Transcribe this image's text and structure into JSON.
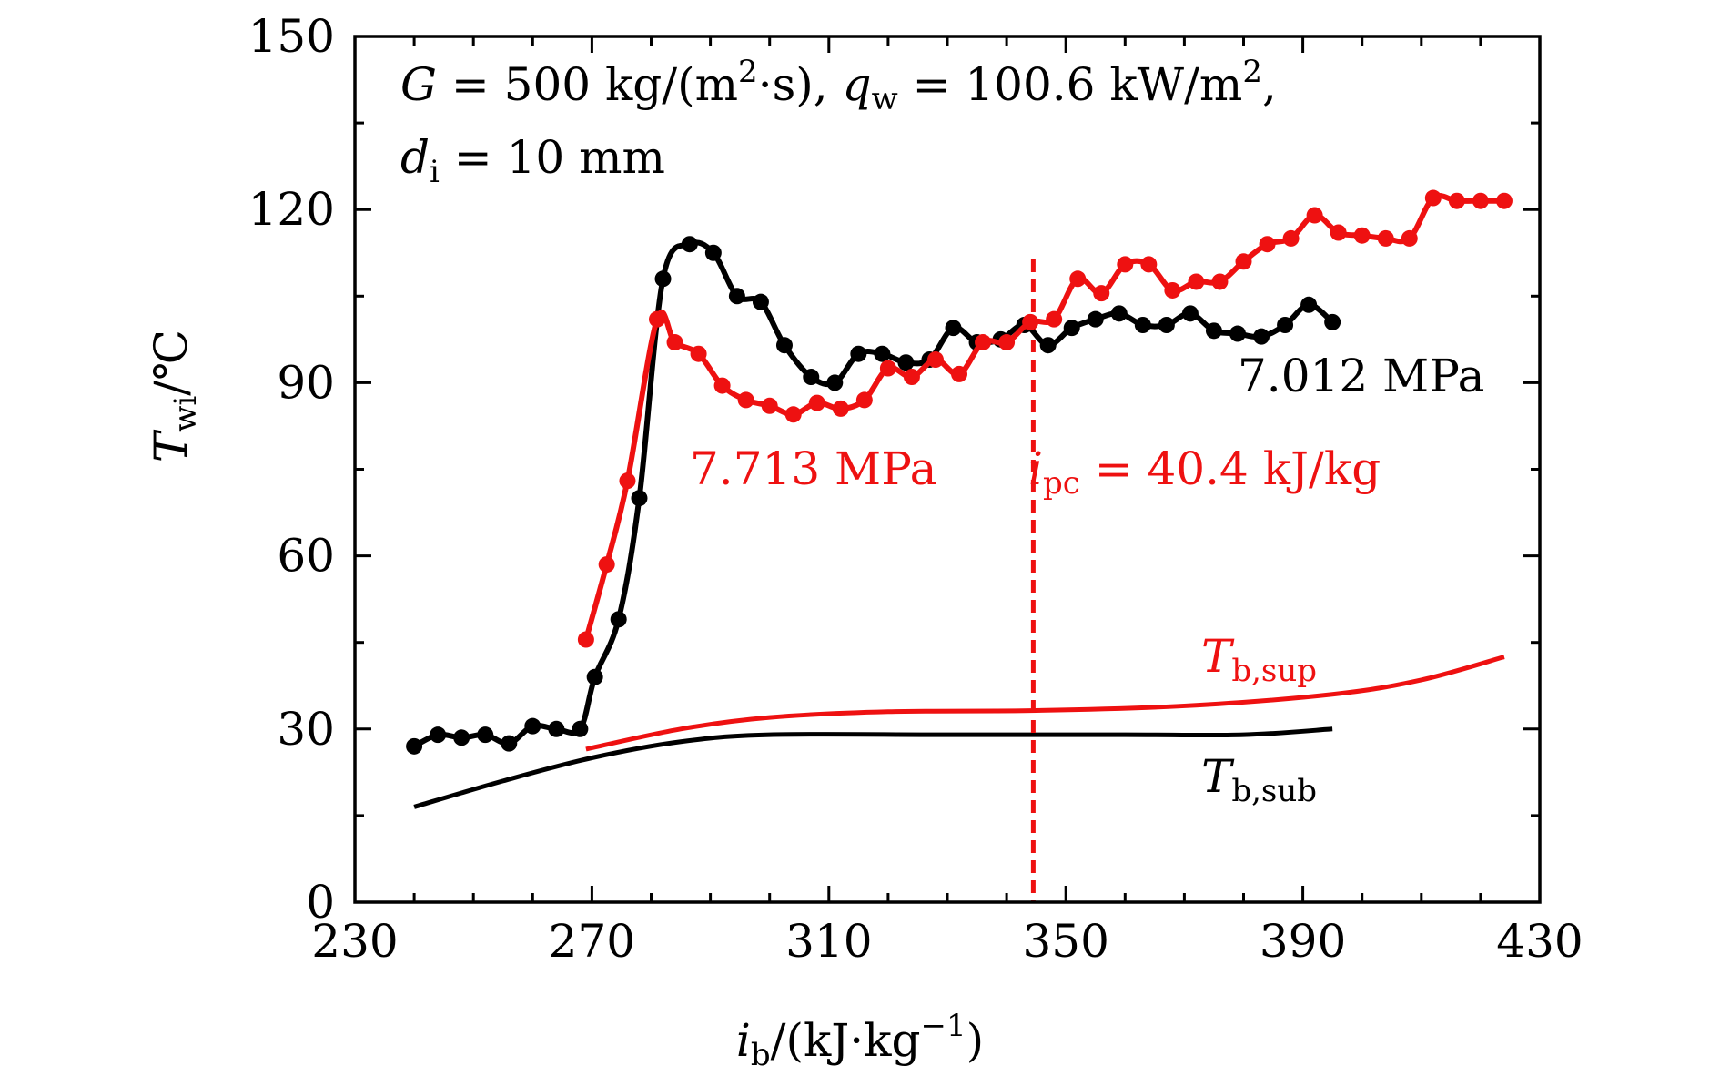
{
  "chart_data": {
    "type": "line",
    "x": {
      "label_main": "i",
      "label_sub": "b",
      "label_rest": "/(kJ·kg",
      "label_sup": "−1",
      "label_close": ")",
      "range": [
        230,
        430
      ],
      "ticks": [
        230,
        270,
        310,
        350,
        390,
        430
      ],
      "minor_step": 10
    },
    "y": {
      "label_main": "T",
      "label_sub": "wi",
      "label_rest": "/℃",
      "range": [
        0,
        150
      ],
      "ticks": [
        0,
        30,
        60,
        90,
        120,
        150
      ],
      "minor_step": 15
    },
    "annotations": {
      "conditions_line1": "G = 500 kg/(m²·s), q_w = 100.6 kW/m²,",
      "conditions_line1_parts": {
        "G": "G",
        "eq1": " = 500 kg/(m",
        "sup1": "2",
        "after_sup1": "·s), ",
        "q": "q",
        "q_sub": "w",
        "eq2": " = 100.6 kW/m",
        "sup2": "2",
        "tail": ","
      },
      "conditions_line2_parts": {
        "d": "d",
        "d_sub": "i",
        "rest": " = 10 mm"
      },
      "ipc_parts": {
        "i": "i",
        "sub": "pc",
        "rest": " = 40.4 kJ/kg"
      },
      "tb_sup_parts": {
        "T": "T",
        "sub": "b,sup"
      },
      "tb_sub_parts": {
        "T": "T",
        "sub": "b,sub"
      }
    },
    "vline_x": 344.5,
    "colors": {
      "black_series": "#000000",
      "red_series": "#ee1111"
    },
    "series": [
      {
        "name": "7.012 MPa",
        "kind": "markers+smooth",
        "color": "#000000",
        "points": [
          [
            240,
            27
          ],
          [
            244,
            29
          ],
          [
            248,
            28.5
          ],
          [
            252,
            29
          ],
          [
            256,
            27.5
          ],
          [
            260,
            30.5
          ],
          [
            264,
            30
          ],
          [
            268,
            30
          ],
          [
            270.5,
            39
          ],
          [
            274.5,
            49
          ],
          [
            278,
            70
          ],
          [
            282,
            108
          ],
          [
            286.5,
            114
          ],
          [
            290.5,
            112.5
          ],
          [
            294.5,
            105
          ],
          [
            298.5,
            104
          ],
          [
            302.5,
            96.5
          ],
          [
            307,
            91
          ],
          [
            311,
            90
          ],
          [
            315,
            95
          ],
          [
            319,
            95
          ],
          [
            323,
            93.5
          ],
          [
            327,
            94
          ],
          [
            331,
            99.5
          ],
          [
            335,
            97
          ],
          [
            339,
            97.5
          ],
          [
            343,
            100
          ],
          [
            347,
            96.5
          ],
          [
            351,
            99.5
          ],
          [
            355,
            101
          ],
          [
            359,
            102
          ],
          [
            363,
            100
          ],
          [
            367,
            100
          ],
          [
            371,
            102
          ],
          [
            375,
            99
          ],
          [
            379,
            98.5
          ],
          [
            383,
            98
          ],
          [
            387,
            100
          ],
          [
            391,
            103.5
          ],
          [
            395,
            100.5
          ]
        ]
      },
      {
        "name": "7.713 MPa",
        "kind": "markers+smooth",
        "color": "#ee1111",
        "points": [
          [
            269,
            45.5
          ],
          [
            272.5,
            58.5
          ],
          [
            276,
            73
          ],
          [
            281,
            101
          ],
          [
            284,
            97
          ],
          [
            288,
            95
          ],
          [
            292,
            89.5
          ],
          [
            296,
            87
          ],
          [
            300,
            86
          ],
          [
            304,
            84.5
          ],
          [
            308,
            86.5
          ],
          [
            312,
            85.5
          ],
          [
            316,
            87
          ],
          [
            320,
            92.5
          ],
          [
            324,
            91
          ],
          [
            328,
            94
          ],
          [
            332,
            91.5
          ],
          [
            336,
            97
          ],
          [
            340,
            97
          ],
          [
            344,
            100.5
          ],
          [
            348,
            101
          ],
          [
            352,
            108
          ],
          [
            356,
            105.5
          ],
          [
            360,
            110.5
          ],
          [
            364,
            110.5
          ],
          [
            368,
            106
          ],
          [
            372,
            107.5
          ],
          [
            376,
            107.5
          ],
          [
            380,
            111
          ],
          [
            384,
            114
          ],
          [
            388,
            115
          ],
          [
            392,
            119
          ],
          [
            396,
            116
          ],
          [
            400,
            115.5
          ],
          [
            404,
            115
          ],
          [
            408,
            115
          ],
          [
            412,
            122
          ],
          [
            416,
            121.5
          ],
          [
            420,
            121.5
          ],
          [
            424,
            121.5
          ]
        ]
      },
      {
        "name": "T_b,sup",
        "kind": "line",
        "color": "#ee1111",
        "points": [
          [
            269,
            26.5
          ],
          [
            285,
            30
          ],
          [
            300,
            32
          ],
          [
            320,
            33
          ],
          [
            345,
            33.2
          ],
          [
            370,
            34
          ],
          [
            395,
            36
          ],
          [
            410,
            38.5
          ],
          [
            424,
            42.5
          ]
        ]
      },
      {
        "name": "T_b,sub",
        "kind": "line",
        "color": "#000000",
        "points": [
          [
            240,
            16.5
          ],
          [
            255,
            21
          ],
          [
            270,
            25
          ],
          [
            285,
            27.8
          ],
          [
            300,
            29
          ],
          [
            330,
            29
          ],
          [
            360,
            29
          ],
          [
            380,
            29
          ],
          [
            395,
            30
          ]
        ]
      }
    ]
  }
}
